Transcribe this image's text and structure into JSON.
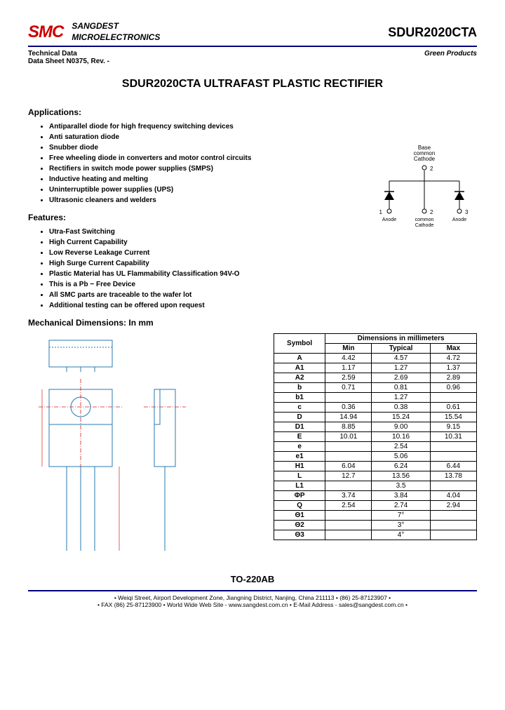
{
  "header": {
    "logo_text": "SMC",
    "company_line1": "SANGDEST",
    "company_line2": "MICROELECTRONICS",
    "part_number": "SDUR2020CTA"
  },
  "subheader": {
    "left_line1": "Technical Data",
    "left_line2": "Data Sheet N0375, Rev. -",
    "right": "Green Products"
  },
  "title": "SDUR2020CTA ULTRAFAST PLASTIC RECTIFIER",
  "applications": {
    "heading": "Applications:",
    "items": [
      "Antiparallel diode for high frequency switching devices",
      "Anti saturation diode",
      "Snubber diode",
      "Free wheeling diode in converters and motor control circuits",
      "Rectifiers in switch mode power supplies (SMPS)",
      "Inductive heating and melting",
      "Uninterruptible power supplies (UPS)",
      "Ultrasonic cleaners and welders"
    ]
  },
  "features": {
    "heading": "Features:",
    "items": [
      "Utra-Fast Switching",
      "High Current Capability",
      "Low Reverse Leakage Current",
      "High Surge Current Capability",
      "Plastic Material has UL Flammability Classification 94V-O",
      "This is a Pb − Free Device",
      "All SMC parts are traceable to the wafer lot",
      "Additional testing can be offered upon request"
    ]
  },
  "schematic": {
    "base": "Base",
    "common": "common",
    "cathode": "Cathode",
    "pin1": "○1",
    "pin1_label": "Anode",
    "pin2": "○ 2",
    "pin2_label": "common Cathode",
    "pin3": "○3",
    "pin3_label": "Anode"
  },
  "mechanical": {
    "heading": "Mechanical Dimensions: In mm"
  },
  "dim_table": {
    "header_span": "Dimensions in millimeters",
    "cols": [
      "Symbol",
      "Min",
      "Typical",
      "Max"
    ],
    "rows": [
      [
        "A",
        "4.42",
        "4.57",
        "4.72"
      ],
      [
        "A1",
        "1.17",
        "1.27",
        "1.37"
      ],
      [
        "A2",
        "2.59",
        "2.69",
        "2.89"
      ],
      [
        "b",
        "0.71",
        "0.81",
        "0.96"
      ],
      [
        "b1",
        "",
        "1.27",
        ""
      ],
      [
        "c",
        "0.36",
        "0.38",
        "0.61"
      ],
      [
        "D",
        "14.94",
        "15.24",
        "15.54"
      ],
      [
        "D1",
        "8.85",
        "9.00",
        "9.15"
      ],
      [
        "E",
        "10.01",
        "10.16",
        "10.31"
      ],
      [
        "e",
        "",
        "2.54",
        ""
      ],
      [
        "e1",
        "",
        "5.06",
        ""
      ],
      [
        "H1",
        "6.04",
        "6.24",
        "6.44"
      ],
      [
        "L",
        "12.7",
        "13.56",
        "13.78"
      ],
      [
        "L1",
        "",
        "3.5",
        ""
      ],
      [
        "ΦP",
        "3.74",
        "3.84",
        "4.04"
      ],
      [
        "Q",
        "2.54",
        "2.74",
        "2.94"
      ],
      [
        "Θ1",
        "",
        "7°",
        ""
      ],
      [
        "Θ2",
        "",
        "3°",
        ""
      ],
      [
        "Θ3",
        "",
        "4°",
        ""
      ]
    ]
  },
  "package": "TO-220AB",
  "footer": {
    "line1": "• Weiqi Street, Airport Development Zone, Jiangning District, Nanjing, China 211113  • (86) 25-87123907 •",
    "line2": "• FAX (86) 25-87123900 • World Wide Web Site - www.sangdest.com.cn • E-Mail Address - sales@sangdest.com.cn •"
  },
  "colors": {
    "logo_red": "#cc0000",
    "rule_blue": "#000080",
    "drawing_line": "#2a7ab0",
    "dim_red": "#d02020"
  }
}
